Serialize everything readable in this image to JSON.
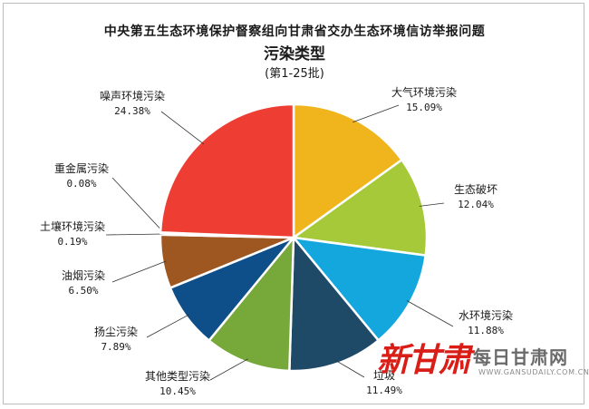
{
  "chart_data": {
    "type": "pie",
    "title": "中央第五生态环境保护督察组向甘肃省交办生态环境信访举报问题",
    "subtitle": "污染类型",
    "note": "(第1-25批)",
    "categories": [
      "大气环境污染",
      "生态破坏",
      "水环境污染",
      "垃圾",
      "其他类型污染",
      "扬尘污染",
      "油烟污染",
      "土壤环境污染",
      "重金属污染",
      "噪声环境污染"
    ],
    "values": [
      15.09,
      12.04,
      11.88,
      11.49,
      10.45,
      7.89,
      6.5,
      0.19,
      0.08,
      24.38
    ],
    "value_labels": [
      "15.09%",
      "12.04%",
      "11.88%",
      "11.49%",
      "10.45%",
      "7.89%",
      "6.50%",
      "0.19%",
      "0.08%",
      "24.38%"
    ],
    "colors": [
      "#f0b41c",
      "#a6c93a",
      "#13a7de",
      "#1e4a68",
      "#76a83a",
      "#0e4f8a",
      "#9e5721",
      "#7d7d7d",
      "#c9c9c9",
      "#ee3d33"
    ]
  },
  "watermark": {
    "brand": "新甘肃",
    "daily": "每日甘肃网",
    "url": "WWW.GANSUDAILY.COM.CN"
  }
}
